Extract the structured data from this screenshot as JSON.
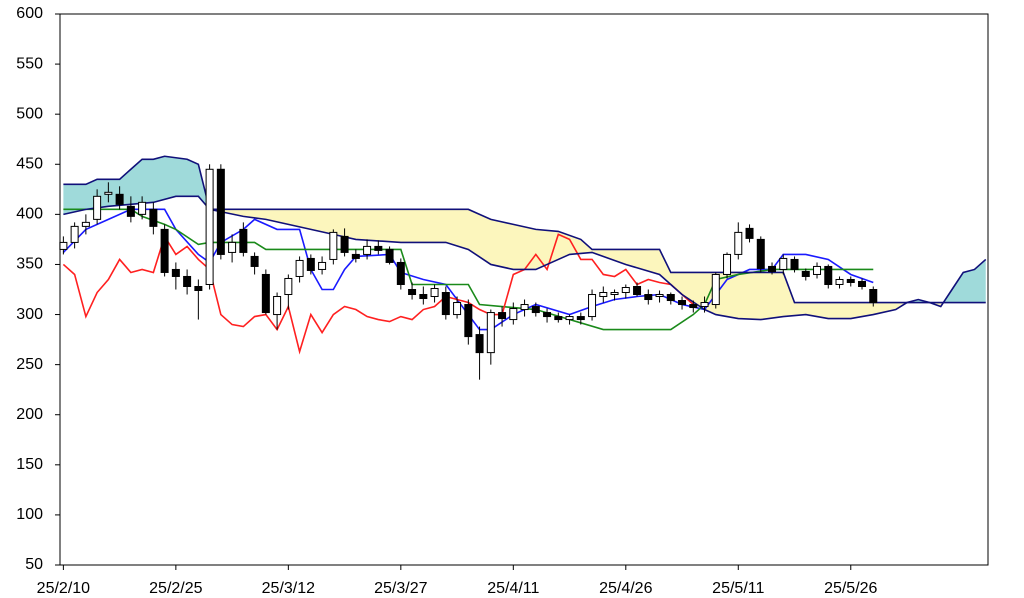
{
  "chart_data": {
    "type": "candlestick",
    "xlim": [
      -0.3,
      82.2
    ],
    "ylim": [
      50,
      600
    ],
    "xticks": [
      {
        "value": 0,
        "label": "25/2/10"
      },
      {
        "value": 10,
        "label": "25/2/25"
      },
      {
        "value": 20,
        "label": "25/3/12"
      },
      {
        "value": 30,
        "label": "25/3/27"
      },
      {
        "value": 40,
        "label": "25/4/11"
      },
      {
        "value": 50,
        "label": "25/4/26"
      },
      {
        "value": 60,
        "label": "25/5/11"
      },
      {
        "value": 70,
        "label": "25/5/26"
      }
    ],
    "yticks": [
      50,
      100,
      150,
      200,
      250,
      300,
      350,
      400,
      450,
      500,
      550,
      600
    ],
    "up_color": "#ffffff",
    "down_color": "#000000",
    "cloud_colors": [
      "#9fdada",
      "#fcf6bd"
    ],
    "open": [
      365,
      372,
      388,
      395,
      420,
      420,
      408,
      400,
      405,
      385,
      345,
      338,
      328,
      330,
      445,
      362,
      385,
      358,
      340,
      300,
      320,
      338,
      356,
      345,
      355,
      378,
      360,
      360,
      368,
      365,
      352,
      325,
      320,
      318,
      322,
      300,
      310,
      280,
      262,
      302,
      295,
      305,
      308,
      302,
      298,
      295,
      298,
      298,
      318,
      320,
      322,
      328,
      320,
      318,
      320,
      314,
      310,
      308,
      310,
      340,
      360,
      386,
      375,
      348,
      345,
      355,
      343,
      340,
      348,
      330,
      335,
      333,
      325
    ],
    "high": [
      378,
      392,
      400,
      425,
      432,
      428,
      418,
      418,
      412,
      390,
      352,
      345,
      335,
      450,
      450,
      380,
      392,
      362,
      345,
      322,
      340,
      358,
      360,
      358,
      385,
      386,
      365,
      375,
      374,
      368,
      356,
      332,
      328,
      330,
      328,
      318,
      315,
      288,
      305,
      308,
      312,
      315,
      312,
      306,
      302,
      300,
      302,
      325,
      328,
      325,
      330,
      332,
      325,
      324,
      322,
      318,
      314,
      318,
      342,
      362,
      392,
      390,
      378,
      352,
      360,
      358,
      346,
      352,
      350,
      338,
      338,
      336,
      328
    ],
    "low": [
      360,
      366,
      380,
      390,
      412,
      405,
      392,
      395,
      380,
      338,
      325,
      320,
      295,
      325,
      355,
      352,
      358,
      340,
      300,
      285,
      305,
      332,
      340,
      340,
      350,
      358,
      352,
      355,
      360,
      350,
      325,
      315,
      310,
      312,
      295,
      296,
      270,
      235,
      250,
      288,
      290,
      298,
      298,
      292,
      292,
      290,
      290,
      294,
      312,
      314,
      316,
      318,
      310,
      312,
      310,
      305,
      302,
      302,
      306,
      336,
      355,
      372,
      342,
      340,
      340,
      342,
      334,
      336,
      326,
      326,
      328,
      325,
      308
    ],
    "close": [
      372,
      388,
      392,
      418,
      422,
      410,
      398,
      412,
      388,
      342,
      338,
      328,
      324,
      445,
      360,
      372,
      362,
      348,
      302,
      318,
      336,
      354,
      344,
      352,
      382,
      362,
      356,
      368,
      364,
      352,
      330,
      320,
      316,
      326,
      300,
      312,
      278,
      262,
      302,
      296,
      306,
      310,
      302,
      298,
      295,
      298,
      295,
      320,
      322,
      322,
      327,
      320,
      315,
      320,
      314,
      310,
      307,
      312,
      340,
      360,
      382,
      376,
      346,
      343,
      356,
      345,
      338,
      348,
      330,
      335,
      332,
      328,
      312
    ],
    "series": [
      {
        "color": "#1a1aff",
        "x": [
          0,
          2,
          4,
          6,
          9,
          10,
          12,
          13,
          14,
          16,
          17,
          19,
          21,
          22,
          23,
          24,
          25,
          26,
          29,
          30,
          32,
          34,
          36,
          37,
          38,
          40,
          42,
          45,
          47,
          49,
          51,
          53,
          55,
          57,
          58,
          59,
          61,
          63,
          64,
          66,
          68,
          70,
          72
        ],
        "values": [
          362,
          385,
          395,
          405,
          405,
          385,
          360,
          352,
          372,
          385,
          395,
          385,
          385,
          345,
          325,
          325,
          345,
          358,
          360,
          342,
          335,
          330,
          300,
          285,
          285,
          300,
          310,
          300,
          308,
          315,
          318,
          320,
          310,
          305,
          320,
          335,
          345,
          345,
          360,
          360,
          355,
          340,
          332
        ]
      },
      {
        "color": "#1a8a1a",
        "x": [
          0,
          6,
          7,
          9,
          10,
          12,
          13,
          17,
          18,
          30,
          31,
          36,
          37,
          42,
          48,
          54,
          56,
          57,
          58,
          60,
          63,
          72
        ],
        "values": [
          405,
          405,
          398,
          390,
          385,
          370,
          372,
          372,
          365,
          365,
          330,
          330,
          310,
          305,
          285,
          285,
          300,
          310,
          335,
          340,
          345,
          345
        ]
      },
      {
        "color": "#ff2020",
        "x": [
          0,
          1,
          2,
          3,
          4,
          5,
          6,
          7,
          8,
          9,
          10,
          11,
          12,
          13,
          14,
          15,
          16,
          17,
          18,
          19,
          20,
          21,
          22,
          23,
          24,
          25,
          26,
          27,
          28,
          29,
          30,
          31,
          32,
          33,
          34,
          35,
          36,
          37,
          38,
          39,
          40,
          41,
          42,
          43,
          44,
          45,
          46,
          47,
          48,
          49,
          50,
          51,
          52,
          53,
          54,
          55,
          56
        ],
        "values": [
          350,
          340,
          298,
          322,
          335,
          355,
          342,
          345,
          342,
          378,
          360,
          368,
          355,
          345,
          300,
          290,
          288,
          298,
          300,
          285,
          308,
          263,
          300,
          282,
          300,
          308,
          305,
          298,
          295,
          293,
          298,
          295,
          305,
          308,
          318,
          315,
          312,
          305,
          300,
          300,
          340,
          345,
          360,
          345,
          380,
          375,
          355,
          355,
          340,
          338,
          345,
          330,
          335,
          332,
          330,
          320,
          310
        ]
      },
      {
        "color": "#10107a",
        "x": [
          0,
          2,
          3,
          5,
          6,
          7,
          8,
          9,
          11,
          12,
          13,
          16,
          18,
          20,
          22,
          24,
          26,
          30,
          34,
          36,
          38,
          40,
          42,
          43,
          45,
          47,
          50,
          53,
          55,
          57,
          58,
          60,
          62,
          64,
          66,
          68,
          70,
          72,
          74,
          75,
          76,
          77,
          78,
          79,
          80,
          81,
          82
        ],
        "values": [
          430,
          430,
          435,
          435,
          445,
          455,
          455,
          458,
          455,
          450,
          405,
          398,
          395,
          390,
          385,
          380,
          375,
          372,
          372,
          365,
          350,
          345,
          345,
          350,
          360,
          362,
          350,
          340,
          320,
          305,
          300,
          296,
          295,
          298,
          300,
          296,
          296,
          300,
          305,
          312,
          315,
          312,
          308,
          325,
          342,
          345,
          355
        ]
      },
      {
        "color": "#10107a",
        "x": [
          0,
          2,
          4,
          6,
          8,
          10,
          12,
          13,
          36,
          37,
          38,
          40,
          42,
          44,
          46,
          47,
          53,
          54,
          64,
          65,
          82
        ],
        "values": [
          400,
          405,
          408,
          410,
          412,
          418,
          418,
          405,
          405,
          400,
          395,
          390,
          385,
          383,
          375,
          365,
          365,
          342,
          342,
          312,
          312
        ]
      }
    ]
  }
}
